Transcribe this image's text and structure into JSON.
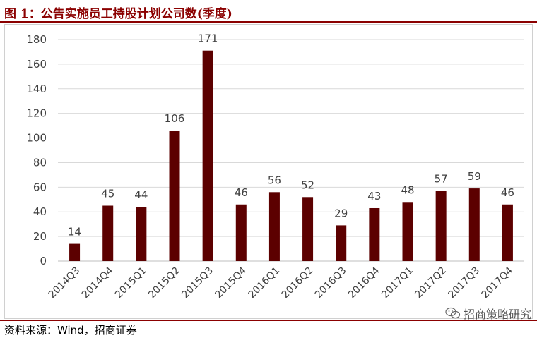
{
  "header": {
    "title": "图 1：公告实施员工持股计划公司数(季度)"
  },
  "footer": {
    "source": "资料来源：Wind，招商证券"
  },
  "watermark": {
    "text": "招商策略研究",
    "icon": "wechat-icon"
  },
  "colors": {
    "bar": "#5c0000",
    "accent": "#8b0000",
    "grid": "#d9d9d9"
  },
  "chart_data": {
    "type": "bar",
    "categories": [
      "2014Q3",
      "2014Q4",
      "2015Q1",
      "2015Q2",
      "2015Q3",
      "2015Q4",
      "2016Q1",
      "2016Q2",
      "2016Q3",
      "2016Q4",
      "2017Q1",
      "2017Q2",
      "2017Q3",
      "2017Q4"
    ],
    "values": [
      14,
      45,
      44,
      106,
      171,
      46,
      56,
      52,
      29,
      43,
      48,
      57,
      59,
      46
    ],
    "ylim": [
      0,
      180
    ],
    "yticks": [
      0,
      20,
      40,
      60,
      80,
      100,
      120,
      140,
      160,
      180
    ],
    "grid": true,
    "data_labels": true
  }
}
